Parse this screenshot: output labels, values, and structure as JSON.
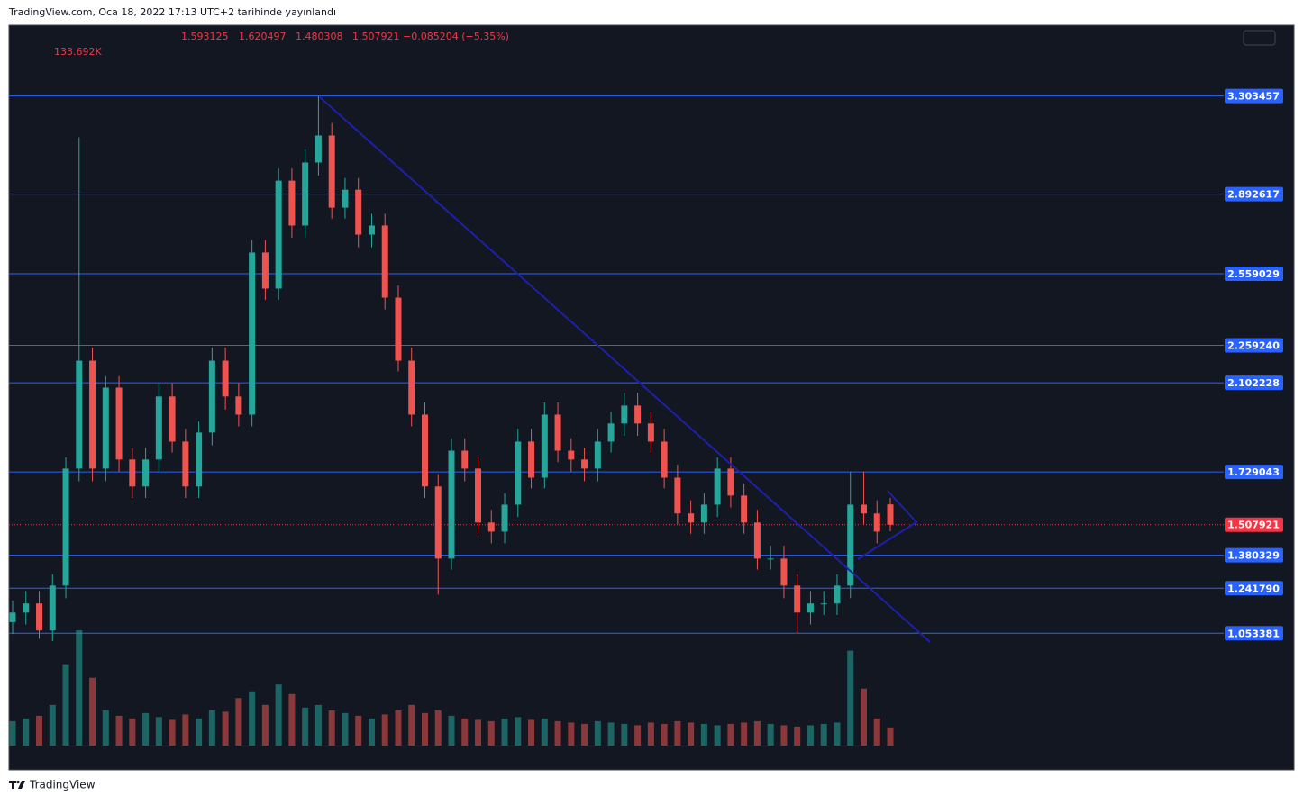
{
  "header": {
    "source": "TradingView.com, Oca 18, 2022 17:13 UTC+2 tarihinde yayınlandı"
  },
  "footer": {
    "brand": "TradingView"
  },
  "chart_data": {
    "type": "candlestick",
    "last_bar": {
      "open": 1.593125,
      "high": 1.620497,
      "low": 1.480308,
      "close": 1.507921,
      "change": "−0.085204 (−5.35%)",
      "volume": "133.692K"
    },
    "last_price": 1.507921,
    "up_color": "#26a69a",
    "down_color": "#ef5350",
    "level_color": "#2962ff",
    "price_color": "#f23645",
    "ylim": [
      0.5,
      3.6
    ],
    "vlim": [
      0,
      850
    ],
    "levels": [
      {
        "value": 3.303457,
        "label": "3.303457"
      },
      {
        "value": 2.892617,
        "label": "2.892617"
      },
      {
        "value": 2.559029,
        "label": "2.559029"
      },
      {
        "value": 2.25924,
        "label": "2.259240"
      },
      {
        "value": 2.102228,
        "label": "2.102228"
      },
      {
        "value": 1.729043,
        "label": "1.729043"
      },
      {
        "value": 1.380329,
        "label": "1.380329"
      },
      {
        "value": 1.24179,
        "label": "1.241790"
      },
      {
        "value": 1.053381,
        "label": "1.053381"
      }
    ],
    "open": [
      1.1,
      1.14,
      1.178,
      1.065,
      1.253,
      1.743,
      2.195,
      1.743,
      2.082,
      1.781,
      1.668,
      1.781,
      2.045,
      1.856,
      1.668,
      1.894,
      2.195,
      2.045,
      1.969,
      2.648,
      2.497,
      2.949,
      2.761,
      3.025,
      3.138,
      2.836,
      2.911,
      2.723,
      2.761,
      2.459,
      2.195,
      1.969,
      1.668,
      1.366,
      1.818,
      1.743,
      1.517,
      1.479,
      1.592,
      1.856,
      1.705,
      1.969,
      1.818,
      1.781,
      1.743,
      1.856,
      1.932,
      2.007,
      1.932,
      1.856,
      1.705,
      1.555,
      1.517,
      1.592,
      1.743,
      1.63,
      1.517,
      1.366,
      1.366,
      1.253,
      1.14,
      1.178,
      1.178,
      1.253,
      1.592,
      1.555,
      1.593125
    ],
    "high": [
      1.19,
      1.23,
      1.23,
      1.3,
      1.79,
      3.13,
      2.25,
      2.13,
      2.13,
      1.83,
      1.83,
      2.1,
      2.1,
      1.91,
      1.94,
      2.25,
      2.25,
      2.1,
      2.7,
      2.7,
      3.0,
      3.0,
      3.08,
      3.303,
      3.19,
      2.96,
      2.96,
      2.81,
      2.81,
      2.51,
      2.25,
      2.02,
      1.72,
      1.87,
      1.87,
      1.79,
      1.57,
      1.64,
      1.91,
      1.91,
      2.02,
      2.02,
      1.87,
      1.83,
      1.91,
      1.98,
      2.06,
      2.06,
      1.98,
      1.91,
      1.76,
      1.61,
      1.64,
      1.79,
      1.79,
      1.68,
      1.57,
      1.42,
      1.42,
      1.3,
      1.23,
      1.23,
      1.3,
      1.729,
      1.73,
      1.61,
      1.620497
    ],
    "low": [
      1.05,
      1.09,
      1.03,
      1.02,
      1.2,
      1.69,
      1.69,
      1.69,
      1.73,
      1.62,
      1.62,
      1.73,
      1.81,
      1.62,
      1.62,
      1.84,
      1.99,
      1.92,
      1.92,
      2.45,
      2.45,
      2.71,
      2.71,
      2.97,
      2.79,
      2.79,
      2.67,
      2.67,
      2.41,
      2.15,
      1.92,
      1.62,
      1.215,
      1.32,
      1.69,
      1.47,
      1.43,
      1.43,
      1.54,
      1.66,
      1.66,
      1.77,
      1.73,
      1.69,
      1.69,
      1.81,
      1.88,
      1.88,
      1.81,
      1.66,
      1.51,
      1.47,
      1.47,
      1.54,
      1.58,
      1.47,
      1.32,
      1.32,
      1.2,
      1.053,
      1.09,
      1.13,
      1.13,
      1.2,
      1.51,
      1.43,
      1.480308
    ],
    "close": [
      1.14,
      1.178,
      1.065,
      1.253,
      1.743,
      2.195,
      1.743,
      2.082,
      1.781,
      1.668,
      1.781,
      2.045,
      1.856,
      1.668,
      1.894,
      2.195,
      2.045,
      1.969,
      2.648,
      2.497,
      2.949,
      2.761,
      3.025,
      3.138,
      2.836,
      2.911,
      2.723,
      2.761,
      2.459,
      2.195,
      1.969,
      1.668,
      1.366,
      1.818,
      1.743,
      1.517,
      1.479,
      1.592,
      1.856,
      1.705,
      1.969,
      1.818,
      1.781,
      1.743,
      1.856,
      1.932,
      2.007,
      1.932,
      1.856,
      1.705,
      1.555,
      1.517,
      1.592,
      1.743,
      1.63,
      1.517,
      1.366,
      1.366,
      1.253,
      1.14,
      1.178,
      1.178,
      1.253,
      1.592,
      1.555,
      1.479,
      1.507921
    ],
    "volume": [
      180,
      200,
      220,
      300,
      600,
      850,
      500,
      260,
      220,
      200,
      240,
      210,
      190,
      230,
      200,
      260,
      250,
      350,
      400,
      300,
      450,
      380,
      280,
      300,
      260,
      240,
      220,
      200,
      230,
      260,
      300,
      240,
      260,
      220,
      200,
      190,
      180,
      200,
      210,
      190,
      200,
      180,
      170,
      160,
      180,
      170,
      160,
      150,
      170,
      160,
      180,
      170,
      160,
      150,
      160,
      170,
      180,
      160,
      150,
      140,
      150,
      160,
      170,
      700,
      420,
      200,
      133.692
    ]
  }
}
